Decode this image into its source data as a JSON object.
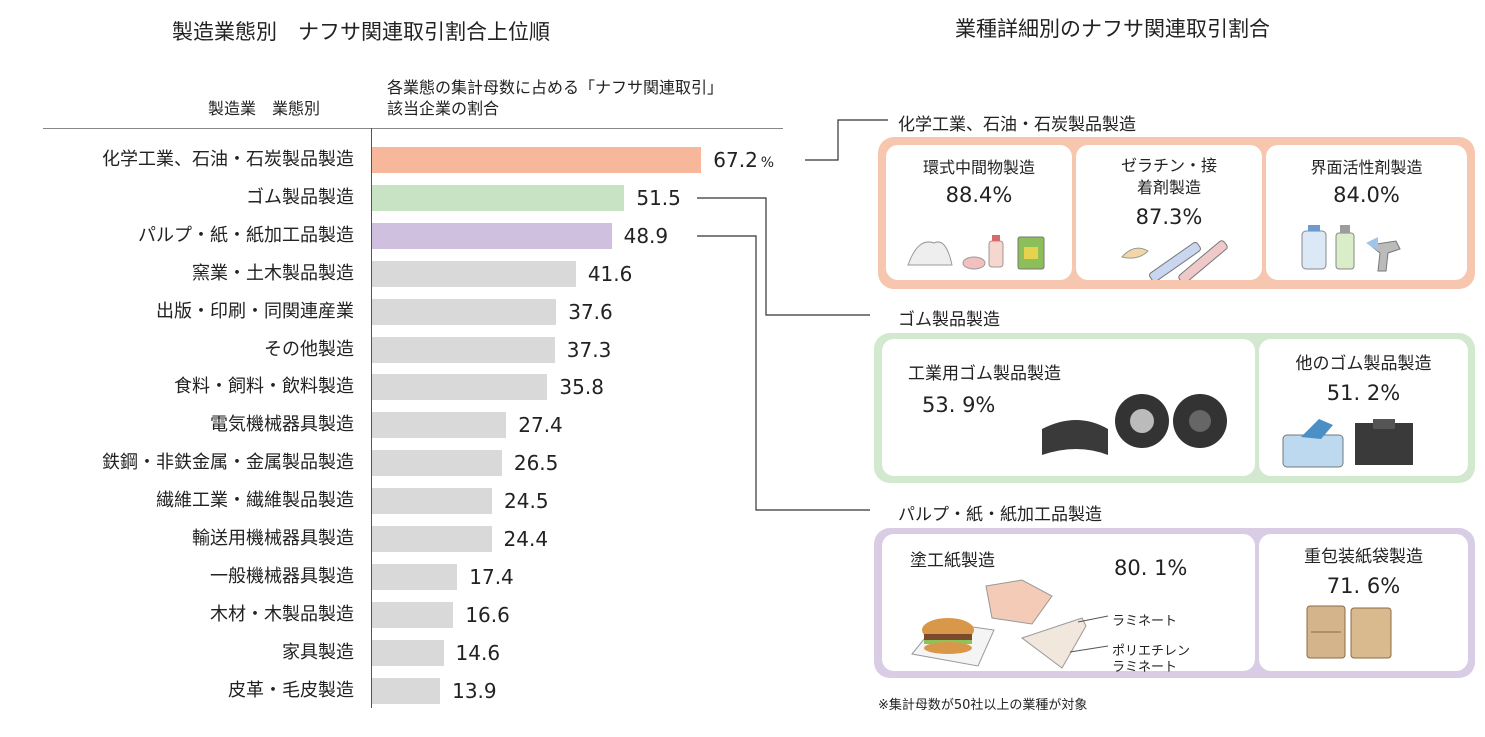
{
  "left_title": "製造業態別　ナフサ関連取引割合上位順",
  "right_title": "業種詳細別のナフサ関連取引割合",
  "column_headers": {
    "category": "製造業　業態別",
    "value_line1": "各業態の集計母数に占める「ナフサ関連取引」",
    "value_line2": "該当企業の割合"
  },
  "chart_data": {
    "type": "bar",
    "orientation": "horizontal",
    "unit": "%",
    "categories": [
      "化学工業、石油・石炭製品製造",
      "ゴム製品製造",
      "パルプ・紙・紙加工品製造",
      "窯業・土木製品製造",
      "出版・印刷・同関連産業",
      "その他製造",
      "食料・飼料・飲料製造",
      "電気機械器具製造",
      "鉄鋼・非鉄金属・金属製品製造",
      "繊維工業・繊維製品製造",
      "輸送用機械器具製造",
      "一般機械器具製造",
      "木材・木製品製造",
      "家具製造",
      "皮革・毛皮製造"
    ],
    "values": [
      67.2,
      51.5,
      48.9,
      41.6,
      37.6,
      37.3,
      35.8,
      27.4,
      26.5,
      24.5,
      24.4,
      17.4,
      16.6,
      14.6,
      13.9
    ],
    "value_labels": [
      "67.2",
      "51.5",
      "48.9",
      "41.6",
      "37.6",
      "37.3",
      "35.8",
      "27.4",
      "26.5",
      "24.5",
      "24.4",
      "17.4",
      "16.6",
      "14.6",
      "13.9"
    ],
    "colors": [
      "#f7b79b",
      "#c7e3c4",
      "#cec0de",
      "#d9d9d9",
      "#d9d9d9",
      "#d9d9d9",
      "#d9d9d9",
      "#d9d9d9",
      "#d9d9d9",
      "#d9d9d9",
      "#d9d9d9",
      "#d9d9d9",
      "#d9d9d9",
      "#d9d9d9",
      "#d9d9d9"
    ]
  },
  "details": {
    "chemical": {
      "label": "化学工業、石油・石炭製品製造",
      "color": "#f7c6ae",
      "items": [
        {
          "name": "環式中間物製造",
          "value": "88.4%"
        },
        {
          "name": "ゼラチン・接着剤製造",
          "value": "87.3%"
        },
        {
          "name": "界面活性剤製造",
          "value": "84.0%"
        }
      ]
    },
    "rubber": {
      "label": "ゴム製品製造",
      "color": "#d3e9cf",
      "items": [
        {
          "name": "工業用ゴム製品製造",
          "value": "53. 9%"
        },
        {
          "name": "他のゴム製品製造",
          "value": "51. 2%"
        }
      ]
    },
    "pulp": {
      "label": "パルプ・紙・紙加工品製造",
      "color": "#d9cde6",
      "items": [
        {
          "name": "塗工紙製造",
          "value": "80. 1%",
          "sub1": "ラミネート",
          "sub2a": "ポリエチレン",
          "sub2b": "ラミネート"
        },
        {
          "name": "重包装紙袋製造",
          "value": "71. 6%"
        }
      ]
    }
  },
  "footnote": "※集計母数が50社以上の業種が対象"
}
